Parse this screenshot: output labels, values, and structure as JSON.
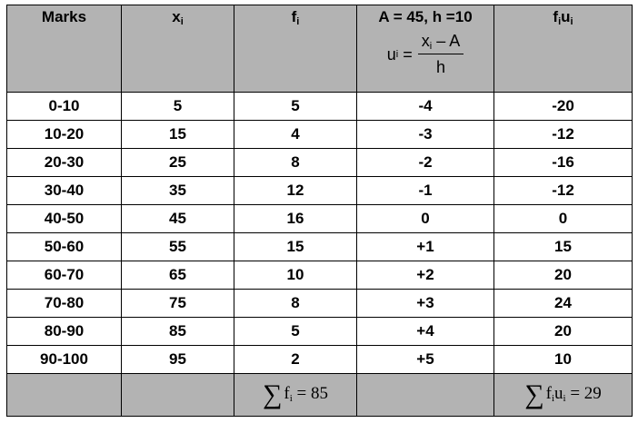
{
  "header": {
    "marks": "Marks",
    "xi": "x",
    "xi_sub": "i",
    "fi": "f",
    "fi_sub": "i",
    "u_title": "A = 45, h =10",
    "u_lhs": "u",
    "u_lhs_sub": "i",
    "u_eq": "=",
    "u_num": "x",
    "u_num_sub": "i",
    "u_num_rest": "– A",
    "u_den": "h",
    "fu_f": "f",
    "fu_f_sub": "i",
    "fu_u": "u",
    "fu_u_sub": "i"
  },
  "rows": [
    [
      "0-10",
      "5",
      "5",
      "-4",
      "-20"
    ],
    [
      "10-20",
      "15",
      "4",
      "-3",
      "-12"
    ],
    [
      "20-30",
      "25",
      "8",
      "-2",
      "-16"
    ],
    [
      "30-40",
      "35",
      "12",
      "-1",
      "-12"
    ],
    [
      "40-50",
      "45",
      "16",
      "0",
      "0"
    ],
    [
      "50-60",
      "55",
      "15",
      "+1",
      "15"
    ],
    [
      "60-70",
      "65",
      "10",
      "+2",
      "20"
    ],
    [
      "70-80",
      "75",
      "8",
      "+3",
      "24"
    ],
    [
      "80-90",
      "85",
      "5",
      "+4",
      "20"
    ],
    [
      "90-100",
      "95",
      "2",
      "+5",
      "10"
    ]
  ],
  "footer": {
    "sigma": "∑",
    "sum_f": "f",
    "sum_f_sub": "i",
    "sum_f_val": "= 85",
    "sum_fu_f": "f",
    "sum_fu_u": "u",
    "sub": "i",
    "sum_fu_val": "= 29"
  },
  "colors": {
    "header_bg": "#b3b3b3"
  }
}
